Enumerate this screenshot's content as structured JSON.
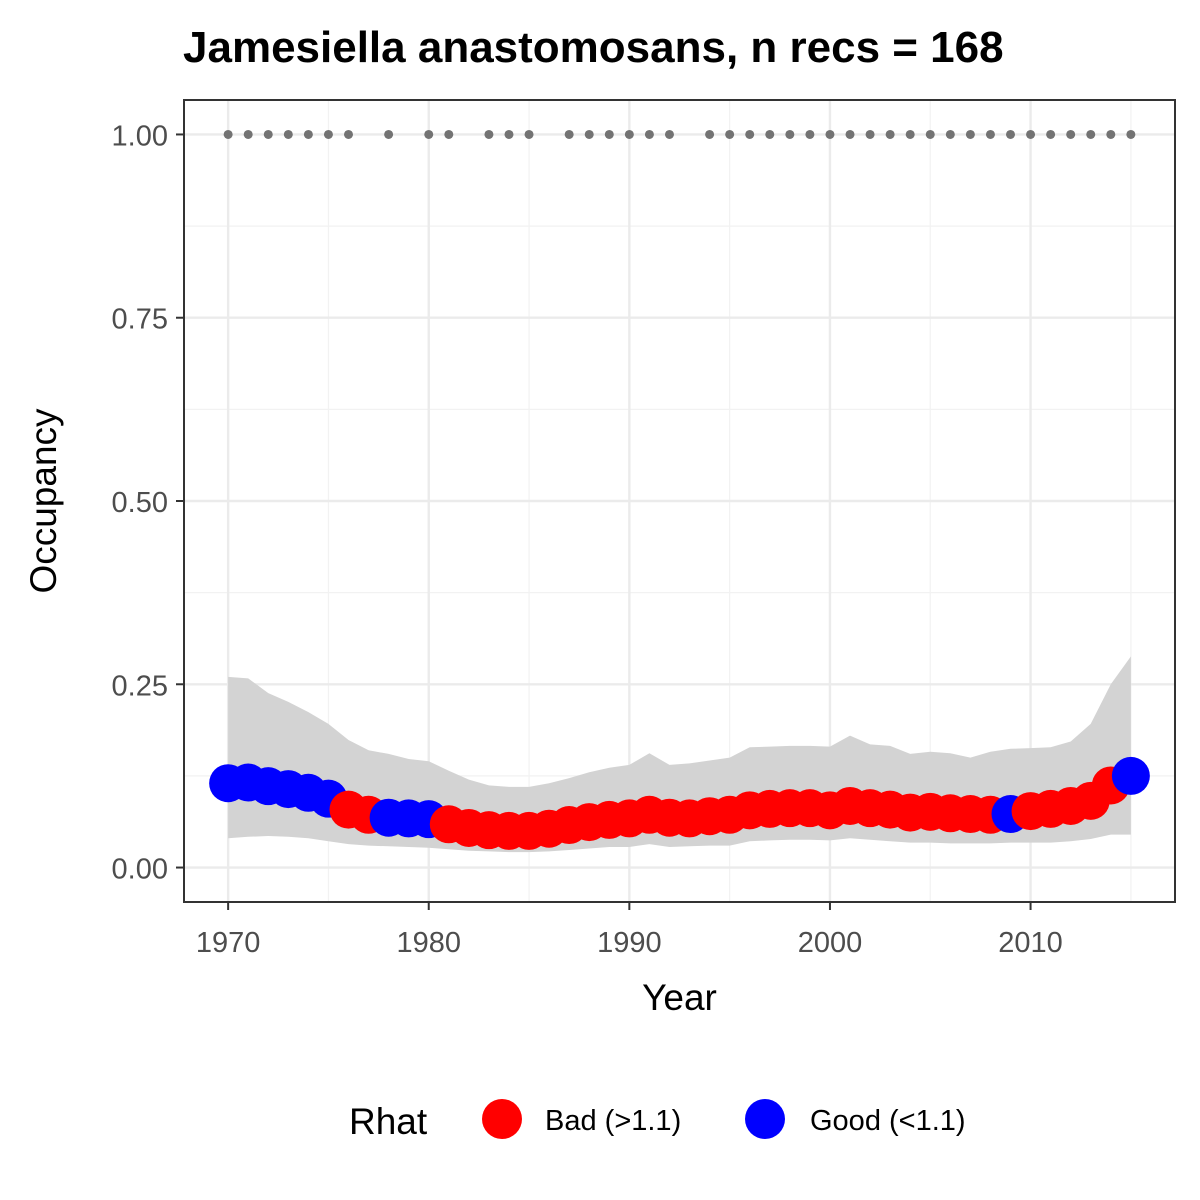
{
  "chart_data": {
    "type": "scatter",
    "title": "Jamesiella anastomosans, n recs = 168",
    "xlabel": "Year",
    "ylabel": "Occupancy",
    "xlim": [
      1967.8,
      2017.2
    ],
    "ylim": [
      -0.047,
      1.047
    ],
    "x_ticks": [
      1970,
      1980,
      1990,
      2000,
      2010
    ],
    "y_ticks": [
      "0.00",
      "0.25",
      "0.50",
      "0.75",
      "1.00"
    ],
    "grid": true,
    "legend": {
      "title": "Rhat",
      "placement": "bottom",
      "entries": [
        {
          "label": "Bad (>1.1)",
          "color": "#ff0000"
        },
        {
          "label": "Good (<1.1)",
          "color": "#0000ff"
        }
      ]
    },
    "colors": {
      "Bad": "#ff0000",
      "Good": "#0000ff",
      "band": "#d3d3d3",
      "records": "#737373"
    },
    "series": [
      {
        "name": "Rhat",
        "x": [
          1970,
          1971,
          1972,
          1973,
          1974,
          1975,
          1976,
          1977,
          1978,
          1979,
          1980,
          1981,
          1982,
          1983,
          1984,
          1985,
          1986,
          1987,
          1988,
          1989,
          1990,
          1991,
          1992,
          1993,
          1994,
          1995,
          1996,
          1997,
          1998,
          1999,
          2000,
          2001,
          2002,
          2003,
          2004,
          2005,
          2006,
          2007,
          2008,
          2009,
          2010,
          2011,
          2012,
          2013,
          2014,
          2015
        ],
        "y": [
          0.115,
          0.116,
          0.111,
          0.107,
          0.102,
          0.094,
          0.079,
          0.072,
          0.068,
          0.067,
          0.066,
          0.059,
          0.054,
          0.051,
          0.05,
          0.05,
          0.053,
          0.058,
          0.062,
          0.065,
          0.067,
          0.072,
          0.068,
          0.067,
          0.07,
          0.072,
          0.078,
          0.08,
          0.081,
          0.081,
          0.078,
          0.084,
          0.081,
          0.079,
          0.075,
          0.076,
          0.074,
          0.073,
          0.072,
          0.073,
          0.077,
          0.08,
          0.084,
          0.091,
          0.112,
          0.125
        ],
        "rhat": [
          "Good",
          "Good",
          "Good",
          "Good",
          "Good",
          "Good",
          "Bad",
          "Bad",
          "Good",
          "Good",
          "Good",
          "Bad",
          "Bad",
          "Bad",
          "Bad",
          "Bad",
          "Bad",
          "Bad",
          "Bad",
          "Bad",
          "Bad",
          "Bad",
          "Bad",
          "Bad",
          "Bad",
          "Bad",
          "Bad",
          "Bad",
          "Bad",
          "Bad",
          "Bad",
          "Bad",
          "Bad",
          "Bad",
          "Bad",
          "Bad",
          "Bad",
          "Bad",
          "Bad",
          "Good",
          "Bad",
          "Bad",
          "Bad",
          "Bad",
          "Bad",
          "Good"
        ],
        "lower": [
          0.04,
          0.042,
          0.043,
          0.042,
          0.04,
          0.036,
          0.032,
          0.03,
          0.029,
          0.028,
          0.027,
          0.025,
          0.023,
          0.022,
          0.021,
          0.021,
          0.022,
          0.024,
          0.026,
          0.028,
          0.028,
          0.032,
          0.028,
          0.029,
          0.03,
          0.03,
          0.036,
          0.037,
          0.038,
          0.038,
          0.037,
          0.04,
          0.038,
          0.036,
          0.034,
          0.034,
          0.033,
          0.033,
          0.033,
          0.034,
          0.034,
          0.034,
          0.036,
          0.039,
          0.045,
          0.045
        ],
        "upper": [
          0.26,
          0.258,
          0.238,
          0.226,
          0.212,
          0.196,
          0.174,
          0.16,
          0.155,
          0.148,
          0.145,
          0.132,
          0.12,
          0.112,
          0.11,
          0.11,
          0.115,
          0.122,
          0.13,
          0.136,
          0.14,
          0.156,
          0.14,
          0.142,
          0.146,
          0.15,
          0.164,
          0.165,
          0.166,
          0.166,
          0.165,
          0.18,
          0.168,
          0.166,
          0.155,
          0.158,
          0.156,
          0.15,
          0.158,
          0.162,
          0.163,
          0.164,
          0.172,
          0.196,
          0.25,
          0.288
        ]
      }
    ],
    "record_years": [
      1970,
      1971,
      1972,
      1973,
      1974,
      1975,
      1976,
      1978,
      1980,
      1981,
      1983,
      1984,
      1985,
      1987,
      1988,
      1989,
      1990,
      1991,
      1992,
      1994,
      1995,
      1996,
      1997,
      1998,
      1999,
      2000,
      2001,
      2002,
      2003,
      2004,
      2005,
      2006,
      2007,
      2008,
      2009,
      2010,
      2011,
      2012,
      2013,
      2014,
      2015
    ],
    "record_value": 1.0
  }
}
